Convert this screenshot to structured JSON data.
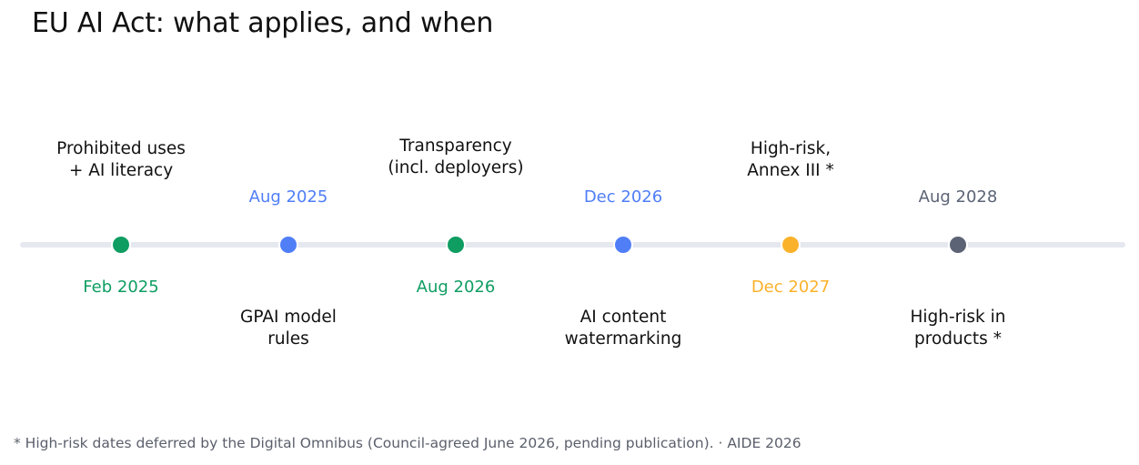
{
  "title": "EU AI Act: what applies, and when",
  "milestones": [
    {
      "date": "Feb 2025",
      "label_lines": [
        "Prohibited uses",
        "+ AI literacy"
      ],
      "color": "#0f9d62"
    },
    {
      "date": "Aug 2025",
      "label_lines": [
        "GPAI model",
        "rules"
      ],
      "color": "#4f7ef7"
    },
    {
      "date": "Aug 2026",
      "label_lines": [
        "Transparency",
        "(incl. deployers)"
      ],
      "color": "#0f9d62"
    },
    {
      "date": "Dec 2026",
      "label_lines": [
        "AI content",
        "watermarking"
      ],
      "color": "#4f7ef7"
    },
    {
      "date": "Dec 2027",
      "label_lines": [
        "High-risk,",
        "Annex III *"
      ],
      "color": "#fbb22b"
    },
    {
      "date": "Aug 2028",
      "label_lines": [
        "High-risk in",
        "products *"
      ],
      "color": "#5b6375"
    }
  ],
  "footnote": "* High-risk dates deferred by the Digital Omnibus (Council-agreed June 2026, pending publication).  ·  AIDE 2026"
}
